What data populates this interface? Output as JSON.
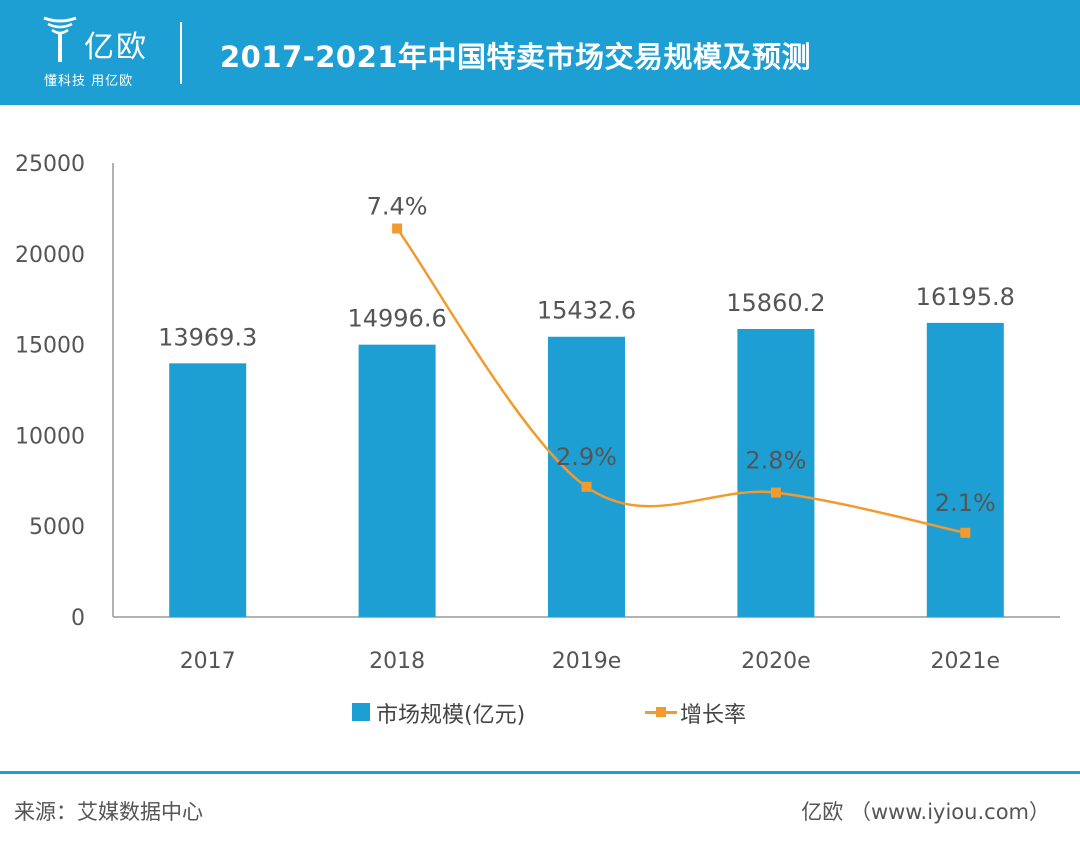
{
  "header": {
    "logo_text": "亿欧",
    "logo_sub": "懂科技 用亿欧",
    "title": "2017-2021年中国特卖市场交易规模及预测"
  },
  "colors": {
    "accent": "#1e9fd4",
    "bar": "#1e9fd4",
    "line": "#f39a2f"
  },
  "chart_data": {
    "type": "bar",
    "categories": [
      "2017",
      "2018",
      "2019e",
      "2020e",
      "2021e"
    ],
    "ylim": [
      0,
      25000
    ],
    "yticks": [
      0,
      5000,
      10000,
      15000,
      20000,
      25000
    ],
    "grid": false,
    "legend_position": "bottom-center",
    "series": [
      {
        "name": "市场规模(亿元)",
        "type": "bar",
        "values": [
          13969.3,
          14996.6,
          15432.6,
          15860.2,
          16195.8
        ],
        "labels": [
          "13969.3",
          "14996.6",
          "15432.6",
          "15860.2",
          "16195.8"
        ]
      },
      {
        "name": "增长率",
        "type": "line",
        "smooth": true,
        "values": [
          null,
          7.4,
          2.9,
          2.8,
          2.1
        ],
        "labels": [
          null,
          "7.4%",
          "2.9%",
          "2.8%",
          "2.1%"
        ]
      }
    ]
  },
  "footer": {
    "source": "来源：艾媒数据中心",
    "brand": "亿欧 （www.iyiou.com）"
  }
}
